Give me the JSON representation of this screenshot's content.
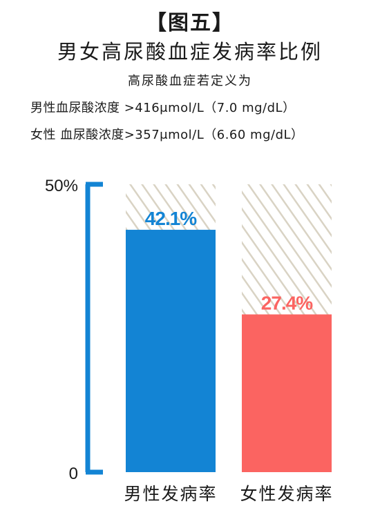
{
  "title": "【图五】",
  "subtitle": "男女高尿酸血症发病率比例",
  "definition": {
    "heading": "高尿酸血症若定义为",
    "male": "男性血尿酸浓度 >416μmol/L（7.0 mg/dL）",
    "female": "女性 血尿酸浓度>357μmol/L（6.60 mg/dL）"
  },
  "chart_data": {
    "type": "bar",
    "categories": [
      "男性发病率",
      "女性发病率"
    ],
    "values": [
      42.1,
      27.4
    ],
    "value_labels": [
      "42.1%",
      "27.4%"
    ],
    "ylim": [
      0,
      50
    ],
    "ytick_labels": [
      "0",
      "50%"
    ],
    "colors": [
      "#1384d4",
      "#fb6461"
    ],
    "label_colors": [
      "#1384d4",
      "#fb6461"
    ],
    "background_pattern_color": "#d9d3c4",
    "axis_color": "#1384d4",
    "grid": false
  }
}
